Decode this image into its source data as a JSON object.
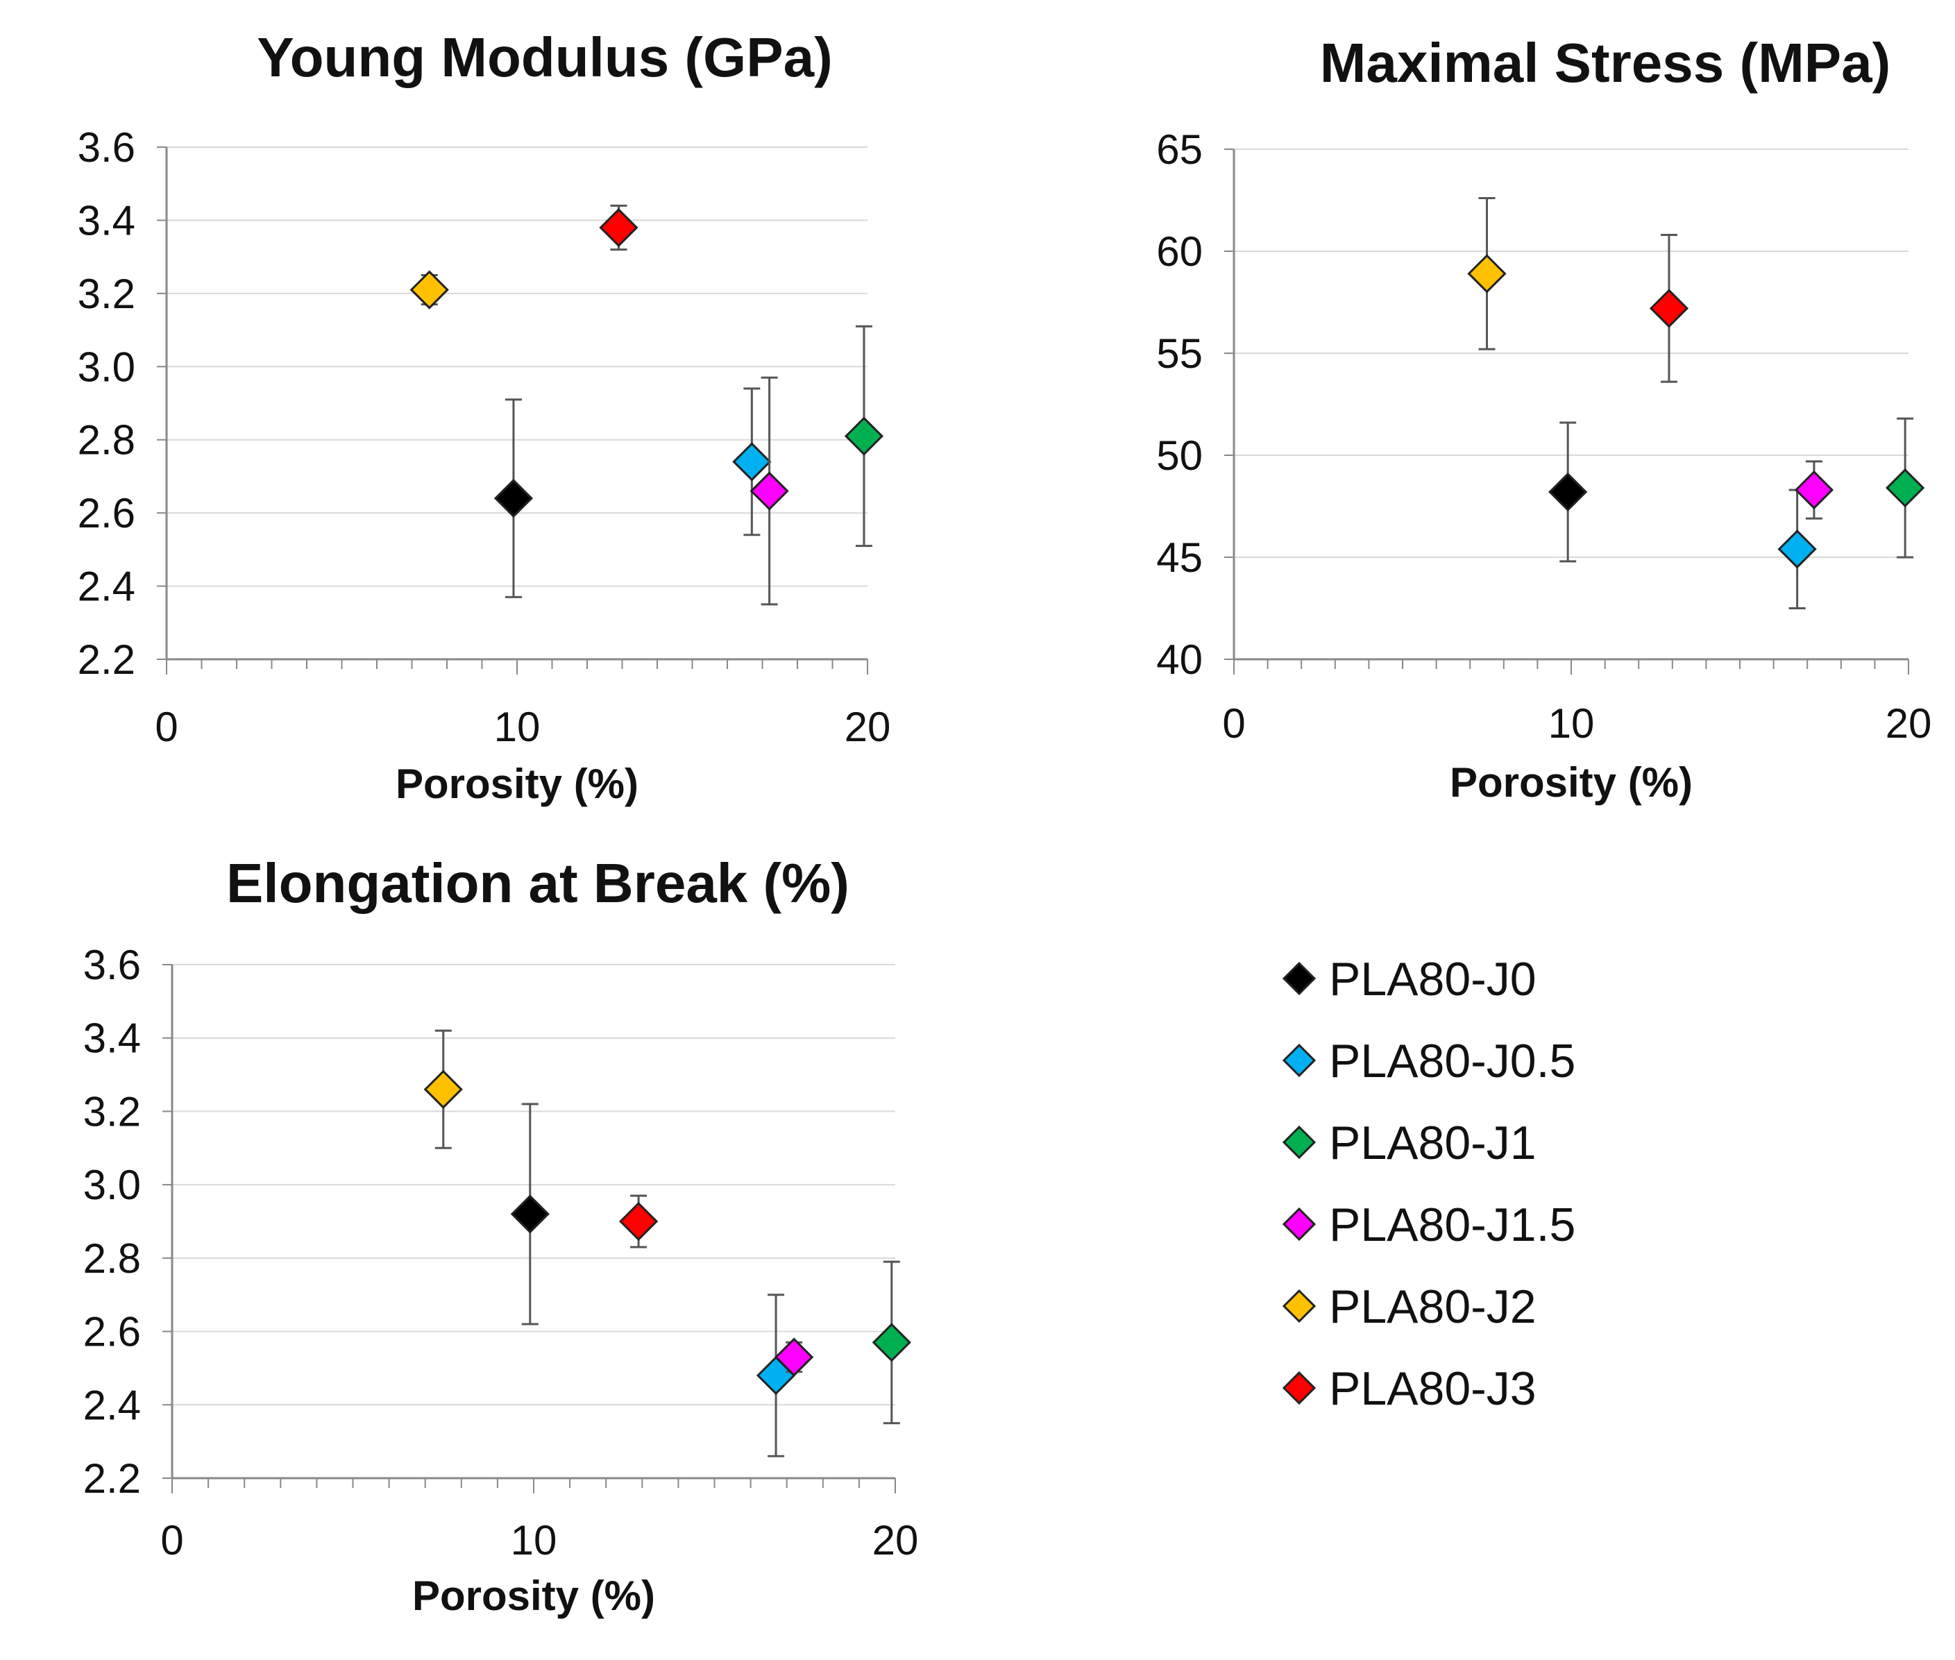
{
  "chart_data": [
    {
      "id": "young",
      "type": "scatter",
      "title": "Young Modulus (GPa)",
      "xlabel": "Porosity (%)",
      "ylabel": "",
      "xlim": [
        0,
        20
      ],
      "ylim": [
        2.2,
        3.6
      ],
      "xticks": [
        "0",
        "10",
        "20"
      ],
      "yticks": [
        "2.2",
        "2.4",
        "2.6",
        "2.8",
        "3.0",
        "3.2",
        "3.4",
        "3.6"
      ],
      "series": [
        {
          "name": "PLA80-J0",
          "x": 9.9,
          "y": 2.64,
          "err": 0.27
        },
        {
          "name": "PLA80-J0.5",
          "x": 16.7,
          "y": 2.74,
          "err": 0.2
        },
        {
          "name": "PLA80-J1",
          "x": 19.9,
          "y": 2.81,
          "err": 0.3
        },
        {
          "name": "PLA80-J1.5",
          "x": 17.2,
          "y": 2.66,
          "err": 0.31
        },
        {
          "name": "PLA80-J2",
          "x": 7.5,
          "y": 3.21,
          "err": 0.04
        },
        {
          "name": "PLA80-J3",
          "x": 12.9,
          "y": 3.38,
          "err": 0.06
        }
      ]
    },
    {
      "id": "stress",
      "type": "scatter",
      "title": "Maximal Stress (MPa)",
      "xlabel": "Porosity (%)",
      "ylabel": "",
      "xlim": [
        0,
        20
      ],
      "ylim": [
        40,
        65
      ],
      "xticks": [
        "0",
        "10",
        "20"
      ],
      "yticks": [
        "40",
        "45",
        "50",
        "55",
        "60",
        "65"
      ],
      "series": [
        {
          "name": "PLA80-J0",
          "x": 9.9,
          "y": 48.2,
          "err": 3.4
        },
        {
          "name": "PLA80-J0.5",
          "x": 16.7,
          "y": 45.4,
          "err": 2.9
        },
        {
          "name": "PLA80-J1",
          "x": 19.9,
          "y": 48.4,
          "err": 3.4
        },
        {
          "name": "PLA80-J1.5",
          "x": 17.2,
          "y": 48.3,
          "err": 1.4
        },
        {
          "name": "PLA80-J2",
          "x": 7.5,
          "y": 58.9,
          "err": 3.7
        },
        {
          "name": "PLA80-J3",
          "x": 12.9,
          "y": 57.2,
          "err": 3.6
        }
      ]
    },
    {
      "id": "elong",
      "type": "scatter",
      "title": "Elongation at Break (%)",
      "xlabel": "Porosity (%)",
      "ylabel": "",
      "xlim": [
        0,
        20
      ],
      "ylim": [
        2.2,
        3.6
      ],
      "xticks": [
        "0",
        "10",
        "20"
      ],
      "yticks": [
        "2.2",
        "2.4",
        "2.6",
        "2.8",
        "3.0",
        "3.2",
        "3.4",
        "3.6"
      ],
      "series": [
        {
          "name": "PLA80-J0",
          "x": 9.9,
          "y": 2.92,
          "err": 0.3
        },
        {
          "name": "PLA80-J0.5",
          "x": 16.7,
          "y": 2.48,
          "err": 0.22
        },
        {
          "name": "PLA80-J1",
          "x": 19.9,
          "y": 2.57,
          "err": 0.22
        },
        {
          "name": "PLA80-J1.5",
          "x": 17.2,
          "y": 2.53,
          "err": 0.04
        },
        {
          "name": "PLA80-J2",
          "x": 7.5,
          "y": 3.26,
          "err": 0.16
        },
        {
          "name": "PLA80-J3",
          "x": 12.9,
          "y": 2.9,
          "err": 0.07
        }
      ]
    }
  ],
  "legend": [
    {
      "name": "PLA80-J0",
      "color": "#000000"
    },
    {
      "name": "PLA80-J0.5",
      "color": "#00B0F0"
    },
    {
      "name": "PLA80-J1",
      "color": "#00B050"
    },
    {
      "name": "PLA80-J1.5",
      "color": "#FF00FF"
    },
    {
      "name": "PLA80-J2",
      "color": "#FFC000"
    },
    {
      "name": "PLA80-J3",
      "color": "#FF0000"
    }
  ]
}
